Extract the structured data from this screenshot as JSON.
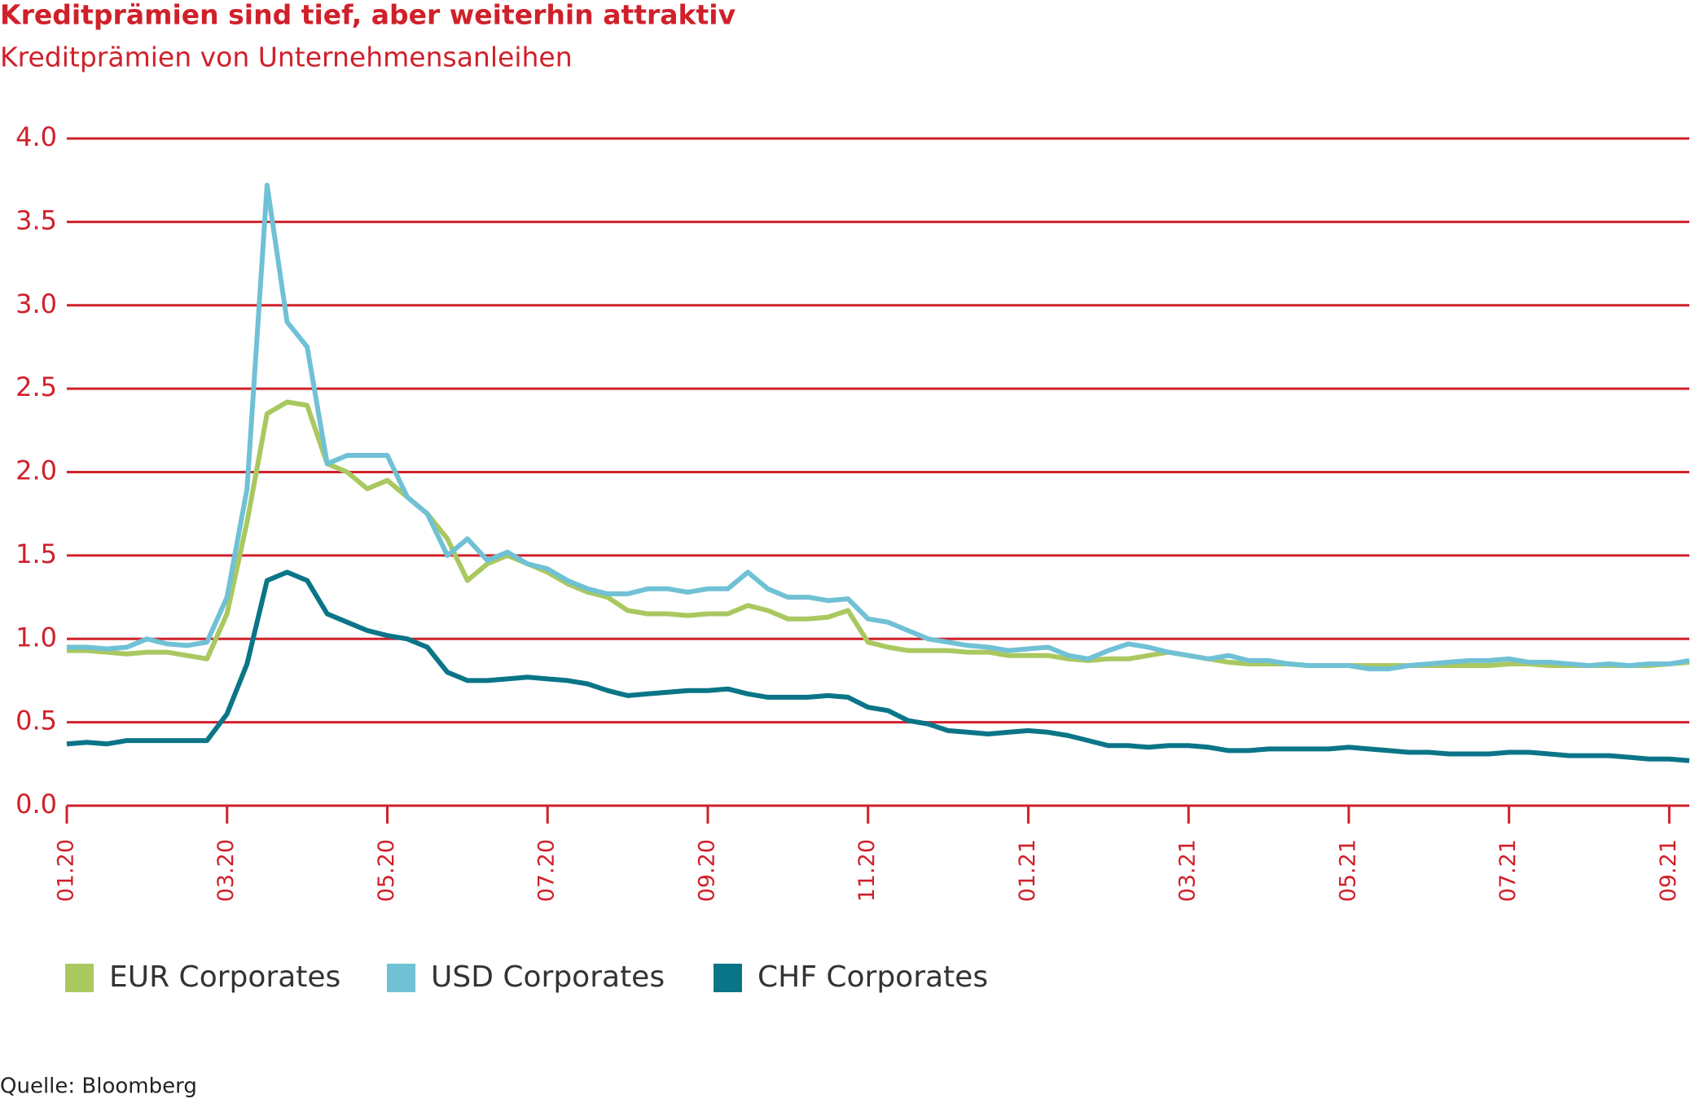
{
  "chart_data": {
    "type": "line",
    "title": "Kreditprämien sind tief, aber weiterhin attraktiv",
    "subtitle": "Kreditprämien von Unternehmensanleihen",
    "source": "Quelle: Bloomberg",
    "categories": [
      "01.20",
      null,
      null,
      null,
      null,
      null,
      null,
      null,
      "03.20",
      null,
      null,
      null,
      null,
      null,
      null,
      null,
      "05.20",
      null,
      null,
      null,
      null,
      null,
      null,
      null,
      "07.20",
      null,
      null,
      null,
      null,
      null,
      null,
      null,
      "09.20",
      null,
      null,
      null,
      null,
      null,
      null,
      null,
      "11.20",
      null,
      null,
      null,
      null,
      null,
      null,
      null,
      "01.21",
      null,
      null,
      null,
      null,
      null,
      null,
      null,
      "03.21",
      null,
      null,
      null,
      null,
      null,
      null,
      null,
      "05.21",
      null,
      null,
      null,
      null,
      null,
      null,
      null,
      "07.21",
      null,
      null,
      null,
      null,
      null,
      null,
      null,
      "09.21",
      null
    ],
    "series": [
      {
        "name": "EUR Corporates",
        "color": "#a9c860",
        "values": [
          0.93,
          0.93,
          0.92,
          0.91,
          0.92,
          0.92,
          0.9,
          0.88,
          1.15,
          1.7,
          2.35,
          2.42,
          2.4,
          2.05,
          2.0,
          1.9,
          1.95,
          1.85,
          1.75,
          1.6,
          1.35,
          1.45,
          1.5,
          1.45,
          1.4,
          1.33,
          1.28,
          1.25,
          1.17,
          1.15,
          1.15,
          1.14,
          1.15,
          1.15,
          1.2,
          1.17,
          1.12,
          1.12,
          1.13,
          1.17,
          0.98,
          0.95,
          0.93,
          0.93,
          0.93,
          0.92,
          0.92,
          0.9,
          0.9,
          0.9,
          0.88,
          0.87,
          0.88,
          0.88,
          0.9,
          0.92,
          0.9,
          0.88,
          0.86,
          0.85,
          0.85,
          0.85,
          0.84,
          0.84,
          0.84,
          0.84,
          0.84,
          0.84,
          0.84,
          0.84,
          0.84,
          0.84,
          0.85,
          0.85,
          0.84,
          0.84,
          0.84,
          0.84,
          0.84,
          0.84,
          0.85,
          0.86
        ]
      },
      {
        "name": "USD Corporates",
        "color": "#70c1d5",
        "values": [
          0.95,
          0.95,
          0.94,
          0.95,
          1.0,
          0.97,
          0.96,
          0.98,
          1.25,
          1.9,
          3.72,
          2.9,
          2.75,
          2.05,
          2.1,
          2.1,
          2.1,
          1.85,
          1.75,
          1.5,
          1.6,
          1.47,
          1.52,
          1.45,
          1.42,
          1.35,
          1.3,
          1.27,
          1.27,
          1.3,
          1.3,
          1.28,
          1.3,
          1.3,
          1.4,
          1.3,
          1.25,
          1.25,
          1.23,
          1.24,
          1.12,
          1.1,
          1.05,
          1.0,
          0.98,
          0.96,
          0.95,
          0.93,
          0.94,
          0.95,
          0.9,
          0.88,
          0.93,
          0.97,
          0.95,
          0.92,
          0.9,
          0.88,
          0.9,
          0.87,
          0.87,
          0.85,
          0.84,
          0.84,
          0.84,
          0.82,
          0.82,
          0.84,
          0.85,
          0.86,
          0.87,
          0.87,
          0.88,
          0.86,
          0.86,
          0.85,
          0.84,
          0.85,
          0.84,
          0.85,
          0.85,
          0.87
        ]
      },
      {
        "name": "CHF Corporates",
        "color": "#0b7588",
        "values": [
          0.37,
          0.38,
          0.37,
          0.39,
          0.39,
          0.39,
          0.39,
          0.39,
          0.55,
          0.85,
          1.35,
          1.4,
          1.35,
          1.15,
          1.1,
          1.05,
          1.02,
          1.0,
          0.95,
          0.8,
          0.75,
          0.75,
          0.76,
          0.77,
          0.76,
          0.75,
          0.73,
          0.69,
          0.66,
          0.67,
          0.68,
          0.69,
          0.69,
          0.7,
          0.67,
          0.65,
          0.65,
          0.65,
          0.66,
          0.65,
          0.59,
          0.57,
          0.51,
          0.49,
          0.45,
          0.44,
          0.43,
          0.44,
          0.45,
          0.44,
          0.42,
          0.39,
          0.36,
          0.36,
          0.35,
          0.36,
          0.36,
          0.35,
          0.33,
          0.33,
          0.34,
          0.34,
          0.34,
          0.34,
          0.35,
          0.34,
          0.33,
          0.32,
          0.32,
          0.31,
          0.31,
          0.31,
          0.32,
          0.32,
          0.31,
          0.3,
          0.3,
          0.3,
          0.29,
          0.28,
          0.28,
          0.27
        ]
      }
    ],
    "ylim": [
      0,
      4
    ],
    "yticks": [
      {
        "value": 0,
        "label": "0.0"
      },
      0.5,
      {
        "value": 1,
        "label": "1.0"
      },
      1.5,
      {
        "value": 2,
        "label": "2.0"
      },
      2.5,
      {
        "value": 3,
        "label": "3.0"
      },
      3.5,
      {
        "value": 4,
        "label": "4.0"
      }
    ],
    "grid": true,
    "grid_color": "#d0202a"
  }
}
